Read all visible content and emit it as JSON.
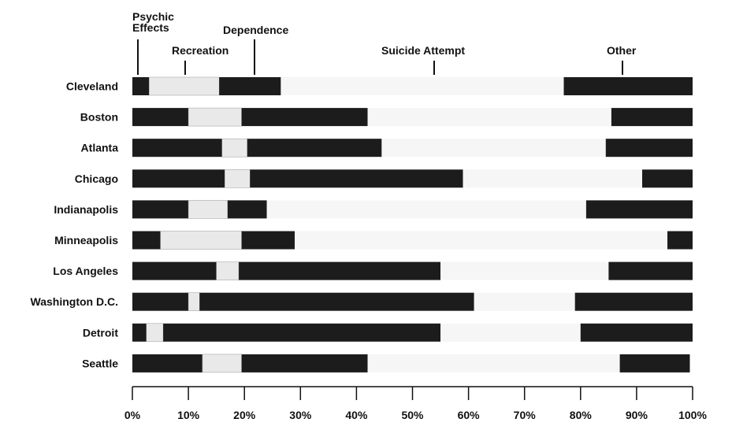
{
  "chart_data": {
    "type": "bar",
    "stacked": true,
    "orientation": "horizontal",
    "title": "",
    "xlabel": "",
    "ylabel": "",
    "xlim": [
      0,
      100
    ],
    "x_ticks": [
      "0%",
      "10%",
      "20%",
      "30%",
      "40%",
      "50%",
      "60%",
      "70%",
      "80%",
      "90%",
      "100%"
    ],
    "categories": [
      "Cleveland",
      "Boston",
      "Atlanta",
      "Chicago",
      "Indianapolis",
      "Minneapolis",
      "Los Angeles",
      "Washington D.C.",
      "Detroit",
      "Seattle"
    ],
    "series": [
      {
        "name": "Psychic Effects",
        "color": "#1c1c1c",
        "values": [
          3,
          10,
          16,
          16.5,
          10,
          5,
          15,
          10,
          2.5,
          12.5
        ]
      },
      {
        "name": "Recreation",
        "color": "#e9e9e9",
        "values": [
          12.5,
          9.5,
          4.5,
          4.5,
          7,
          14.5,
          4,
          2,
          3,
          7
        ]
      },
      {
        "name": "Dependence",
        "color": "#1c1c1c",
        "values": [
          11,
          22.5,
          24,
          38,
          7,
          9.5,
          36,
          49,
          49.5,
          22.5
        ]
      },
      {
        "name": "Suicide Attempt",
        "color": "#f6f6f6",
        "values": [
          50.5,
          43.5,
          40,
          32,
          57,
          66.5,
          30,
          18,
          25,
          45
        ]
      },
      {
        "name": "Other",
        "color": "#1c1c1c",
        "values": [
          23,
          14.5,
          15.5,
          9,
          19,
          4.5,
          15,
          21,
          20,
          12.5
        ]
      }
    ],
    "legend_labels": {
      "psychic_line1": "Psychic",
      "psychic_line2": "Effects",
      "recreation": "Recreation",
      "dependence": "Dependence",
      "suicide": "Suicide Attempt",
      "other": "Other"
    },
    "legend_placement": "top",
    "grid": false
  }
}
